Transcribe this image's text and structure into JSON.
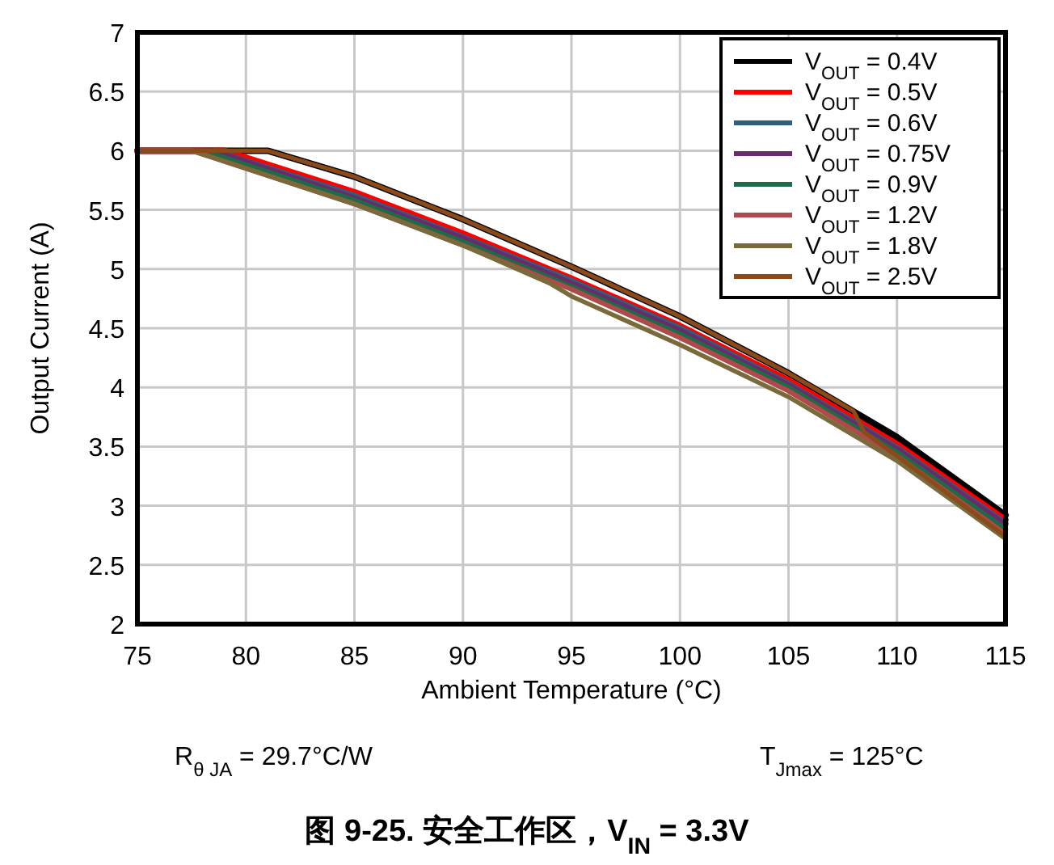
{
  "chart_data": {
    "type": "line",
    "title": "图 9-25. 安全工作区，V$_{IN}$ = 3.3V",
    "xlabel": "Ambient Temperature (°C)",
    "ylabel": "Output Current (A)",
    "annotations": [
      "R$_{θ JA}$ = 29.7°C/W",
      "T$_{Jmax}$ = 125°C"
    ],
    "xlim": [
      75,
      115
    ],
    "xticks": [
      75,
      80,
      85,
      90,
      95,
      100,
      105,
      110,
      115
    ],
    "ylim": [
      2,
      7
    ],
    "yticks": [
      2,
      2.5,
      3,
      3.5,
      4,
      4.5,
      5,
      5.5,
      6,
      6.5,
      7
    ],
    "grid": true,
    "legend": "top right",
    "marker": "none",
    "line_style": "solid",
    "series": [
      {
        "name": "V$_{OUT}$ = 0.4V",
        "color": "#000000",
        "x": [
          75,
          81,
          85,
          90,
          95,
          100,
          105,
          110,
          115
        ],
        "values": [
          6,
          6,
          5.78,
          5.42,
          5.02,
          4.6,
          4.12,
          3.58,
          2.92
        ]
      },
      {
        "name": "V$_{OUT}$ = 0.5V",
        "color": "#ff0000",
        "x": [
          75,
          79,
          85,
          90,
          95,
          100,
          105,
          110,
          115
        ],
        "values": [
          6,
          6,
          5.65,
          5.3,
          4.92,
          4.52,
          4.06,
          3.52,
          2.88
        ]
      },
      {
        "name": "V$_{OUT}$ = 0.6V",
        "color": "#2e5f7f",
        "x": [
          75,
          78.5,
          85,
          90,
          95,
          100,
          105,
          110,
          115
        ],
        "values": [
          6,
          6,
          5.62,
          5.27,
          4.9,
          4.5,
          4.03,
          3.49,
          2.85
        ]
      },
      {
        "name": "V$_{OUT}$ = 0.75V",
        "color": "#6b2a6b",
        "x": [
          75,
          78.5,
          85,
          90,
          95,
          100,
          105,
          110,
          115
        ],
        "values": [
          6,
          6,
          5.6,
          5.26,
          4.88,
          4.48,
          4.02,
          3.48,
          2.84
        ]
      },
      {
        "name": "V$_{OUT}$ = 0.9V",
        "color": "#1e6b4a",
        "x": [
          75,
          78,
          85,
          90,
          95,
          100,
          105,
          110,
          115
        ],
        "values": [
          6,
          6,
          5.58,
          5.23,
          4.85,
          4.45,
          4.0,
          3.45,
          2.8
        ]
      },
      {
        "name": "V$_{OUT}$ = 1.2V",
        "color": "#b04a4a",
        "x": [
          75,
          77.5,
          85,
          90,
          95,
          100,
          105,
          110,
          115
        ],
        "values": [
          6,
          6,
          5.55,
          5.2,
          4.83,
          4.42,
          3.97,
          3.42,
          2.76
        ]
      },
      {
        "name": "V$_{OUT}$ = 1.8V",
        "color": "#7a6a3a",
        "x": [
          75,
          77.5,
          85,
          90,
          94,
          95,
          100,
          105,
          110,
          115
        ],
        "values": [
          6,
          6,
          5.55,
          5.2,
          4.88,
          4.77,
          4.36,
          3.92,
          3.38,
          2.72
        ]
      },
      {
        "name": "V$_{OUT}$ = 2.5V",
        "color": "#8b4a1a",
        "x": [
          75,
          81,
          85,
          90,
          95,
          100,
          105,
          108,
          108.5,
          110,
          115
        ],
        "values": [
          6,
          6,
          5.78,
          5.42,
          5.02,
          4.6,
          4.12,
          3.8,
          3.62,
          3.42,
          2.74
        ]
      }
    ]
  }
}
